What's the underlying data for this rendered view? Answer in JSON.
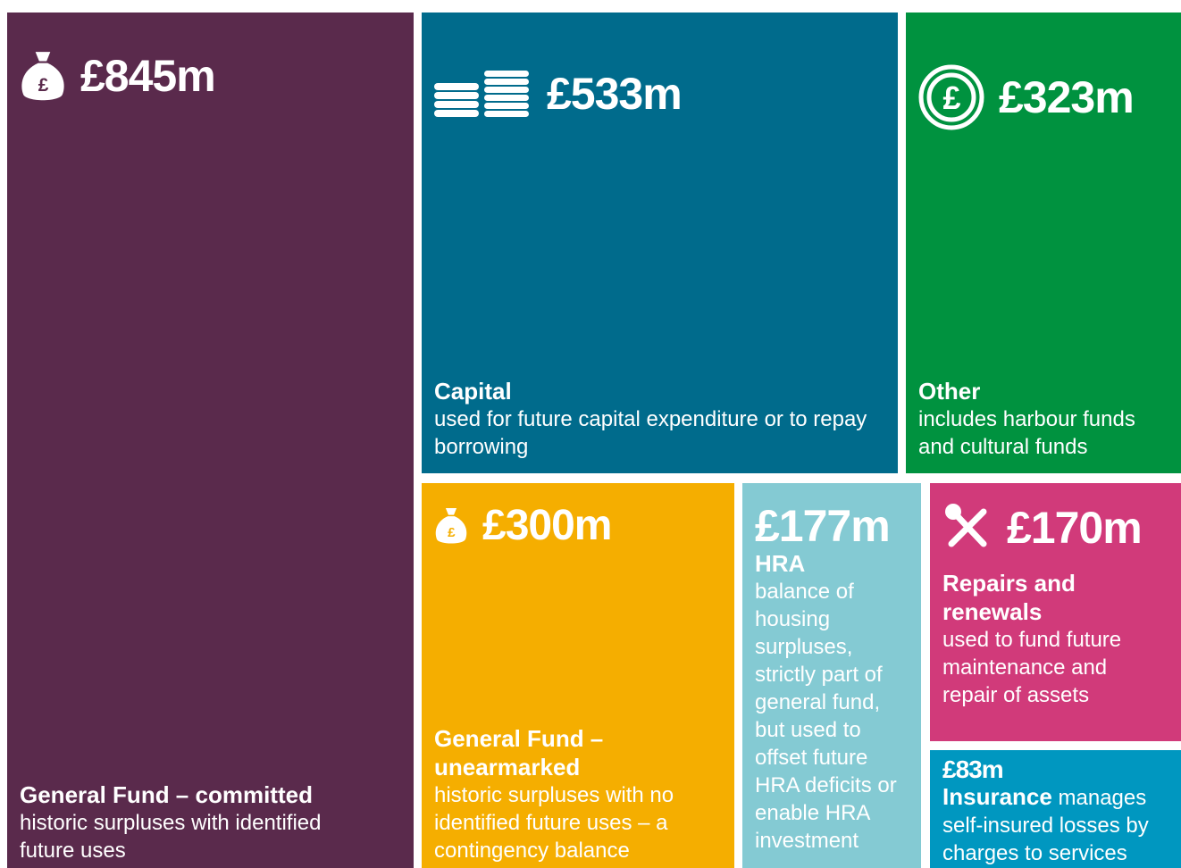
{
  "chart_data": {
    "type": "treemap",
    "categories": [
      "General Fund – committed",
      "Capital",
      "Other",
      "General Fund – unearmarked",
      "HRA",
      "Repairs and renewals",
      "Insurance"
    ],
    "values": [
      845,
      533,
      323,
      300,
      177,
      170,
      83
    ],
    "value_labels": [
      "£845m",
      "£533m",
      "£323m",
      "£300m",
      "£177m",
      "£170m",
      "£83m"
    ],
    "descriptions": [
      "historic surpluses with identified future uses",
      "used for future capital expenditure or to repay borrowing",
      "includes harbour funds and cultural funds",
      "historic surpluses with no identified future uses – a contingency balance",
      "balance of housing surpluses, strictly part of general fund, but used to offset future HRA deficits or enable HRA investment",
      "used to fund future maintenance and repair of assets",
      "manages self-insured losses by charges to services"
    ],
    "colors": [
      "#5a2a4c",
      "#006b8c",
      "#00923f",
      "#f5ae00",
      "#84cad3",
      "#d13a7a",
      "#0097c0"
    ]
  }
}
